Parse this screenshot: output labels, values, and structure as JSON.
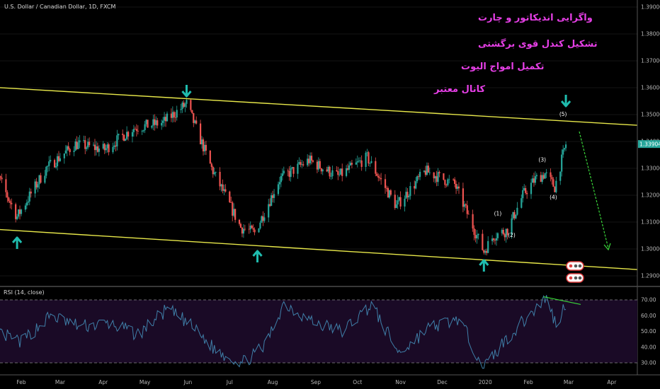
{
  "header": {
    "symbol": "U.S. Dollar / Canadian Dollar, 1D, FXCM"
  },
  "annotations_fa": [
    "واگرایی اندیکاتور و چارت",
    "تشکیل کندل قوی برگشتی",
    "تکمیل امواج الیوت",
    "کانال معتبر"
  ],
  "price_panel": {
    "current_price_label": "1.33904",
    "wave_labels": [
      "(1)",
      "(2)",
      "(3)",
      "(4)",
      "(5)"
    ],
    "y_tick_labels": [
      "1.39000",
      "1.38000",
      "1.37000",
      "1.36000",
      "1.35000",
      "1.34000",
      "1.33000",
      "1.32000",
      "1.31000",
      "1.30000",
      "1.29000"
    ]
  },
  "rsi_panel": {
    "label": "RSI (14, close)",
    "y_tick_labels": [
      "70.00",
      "60.00",
      "50.00",
      "40.00",
      "30.00"
    ]
  },
  "x_axis": {
    "labels": [
      "Feb",
      "Mar",
      "Apr",
      "May",
      "Jun",
      "Jul",
      "Aug",
      "Sep",
      "Oct",
      "Nov",
      "Dec",
      "2020",
      "Feb",
      "Mar",
      "Apr"
    ]
  },
  "colors": {
    "bull": "#26a69a",
    "bear": "#ef5350",
    "channel": "#e8e84a",
    "arrow": "#1fbcae",
    "target": "#3ad83a",
    "annotation": "#e63fe6",
    "rsi_line": "#3f7fa8",
    "rsi_band": "#1a0a26"
  },
  "chart_data": [
    {
      "type": "candlestick",
      "title": "U.S. Dollar / Canadian Dollar, 1D, FXCM",
      "ylim": [
        1.2865,
        1.394
      ],
      "x": [
        "2019-01-08",
        "2019-01-29",
        "2019-02-19",
        "2019-03-12",
        "2019-04-02",
        "2019-04-23",
        "2019-05-14",
        "2019-05-31",
        "2019-06-18",
        "2019-07-09",
        "2019-07-19",
        "2019-08-06",
        "2019-08-27",
        "2019-09-17",
        "2019-10-08",
        "2019-10-29",
        "2019-11-19",
        "2019-12-10",
        "2019-12-31",
        "2020-01-07",
        "2020-01-17",
        "2020-01-28",
        "2020-02-06",
        "2020-02-13",
        "2020-02-20",
        "2020-02-28"
      ],
      "close": [
        1.335,
        1.312,
        1.33,
        1.339,
        1.337,
        1.345,
        1.347,
        1.354,
        1.33,
        1.308,
        1.306,
        1.326,
        1.333,
        1.327,
        1.334,
        1.316,
        1.329,
        1.324,
        1.299,
        1.305,
        1.307,
        1.32,
        1.326,
        1.328,
        1.323,
        1.339
      ],
      "wave_labels": [
        {
          "label": "(1)",
          "date": "2020-01-10",
          "price": 1.3125
        },
        {
          "label": "(2)",
          "date": "2020-01-20",
          "price": 1.3045
        },
        {
          "label": "(3)",
          "date": "2020-02-11",
          "price": 1.3325
        },
        {
          "label": "(4)",
          "date": "2020-02-19",
          "price": 1.3185
        },
        {
          "label": "(5)",
          "date": "2020-02-26",
          "price": 1.3495
        }
      ],
      "channel_upper": [
        {
          "date": "2019-01-01",
          "price": 1.3605
        },
        {
          "date": "2020-04-30",
          "price": 1.3457
        }
      ],
      "channel_lower": [
        {
          "date": "2019-01-08",
          "price": 1.3075
        },
        {
          "date": "2020-04-30",
          "price": 1.292
        }
      ],
      "current_price": 1.33904
    },
    {
      "type": "line",
      "title": "RSI (14, close)",
      "ylim": [
        26,
        74
      ],
      "bands": [
        30,
        70
      ],
      "x": [
        "2019-01-08",
        "2019-02-01",
        "2019-02-22",
        "2019-03-15",
        "2019-04-05",
        "2019-04-26",
        "2019-05-17",
        "2019-05-31",
        "2019-06-21",
        "2019-07-10",
        "2019-07-26",
        "2019-08-09",
        "2019-08-30",
        "2019-09-20",
        "2019-10-11",
        "2019-10-31",
        "2019-11-21",
        "2019-12-13",
        "2019-12-31",
        "2020-01-17",
        "2020-02-07",
        "2020-02-14",
        "2020-02-21",
        "2020-02-28"
      ],
      "values": [
        52,
        43,
        60,
        53,
        55,
        48,
        64,
        56,
        38,
        30,
        40,
        68,
        56,
        50,
        67,
        36,
        52,
        58,
        27,
        46,
        65,
        72,
        54,
        68
      ],
      "divergence_line": [
        {
          "date": "2020-02-12",
          "value": 72
        },
        {
          "date": "2020-03-02",
          "value": 68
        }
      ]
    }
  ]
}
